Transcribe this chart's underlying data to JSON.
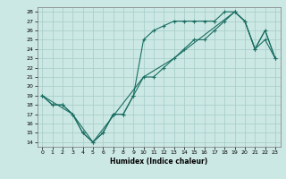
{
  "title": "",
  "xlabel": "Humidex (Indice chaleur)",
  "xlim": [
    -0.5,
    23.5
  ],
  "ylim": [
    13.5,
    28.5
  ],
  "yticks": [
    14,
    15,
    16,
    17,
    18,
    19,
    20,
    21,
    22,
    23,
    24,
    25,
    26,
    27,
    28
  ],
  "xticks": [
    0,
    1,
    2,
    3,
    4,
    5,
    6,
    7,
    8,
    9,
    10,
    11,
    12,
    13,
    14,
    15,
    16,
    17,
    18,
    19,
    20,
    21,
    22,
    23
  ],
  "bg_color": "#cce8e4",
  "line_color": "#1a6e62",
  "grid_color": "#aacfcb",
  "line1_x": [
    0,
    1,
    2,
    3,
    4,
    5,
    6,
    7,
    8,
    9,
    10,
    11,
    12,
    13,
    14,
    15,
    16,
    17,
    18,
    19,
    20,
    21,
    22,
    23
  ],
  "line1_y": [
    19,
    18,
    18,
    17,
    15,
    14,
    15,
    17,
    17,
    19,
    25,
    26,
    26.5,
    27,
    27,
    27,
    27,
    27,
    28,
    28,
    27,
    24,
    26,
    23
  ],
  "line2_x": [
    0,
    1,
    2,
    3,
    4,
    5,
    6,
    7,
    8,
    9,
    10,
    11,
    12,
    13,
    14,
    15,
    16,
    17,
    18,
    19,
    20,
    21,
    22,
    23
  ],
  "line2_y": [
    19,
    18,
    18,
    17,
    15,
    14,
    15,
    17,
    17,
    19,
    21,
    21,
    22,
    23,
    24,
    25,
    25,
    26,
    27,
    28,
    27,
    24,
    25,
    23
  ],
  "line3_x": [
    0,
    3,
    5,
    10,
    13,
    19,
    20,
    21,
    22,
    23
  ],
  "line3_y": [
    19,
    17,
    14,
    21,
    23,
    28,
    27,
    24,
    26,
    23
  ]
}
